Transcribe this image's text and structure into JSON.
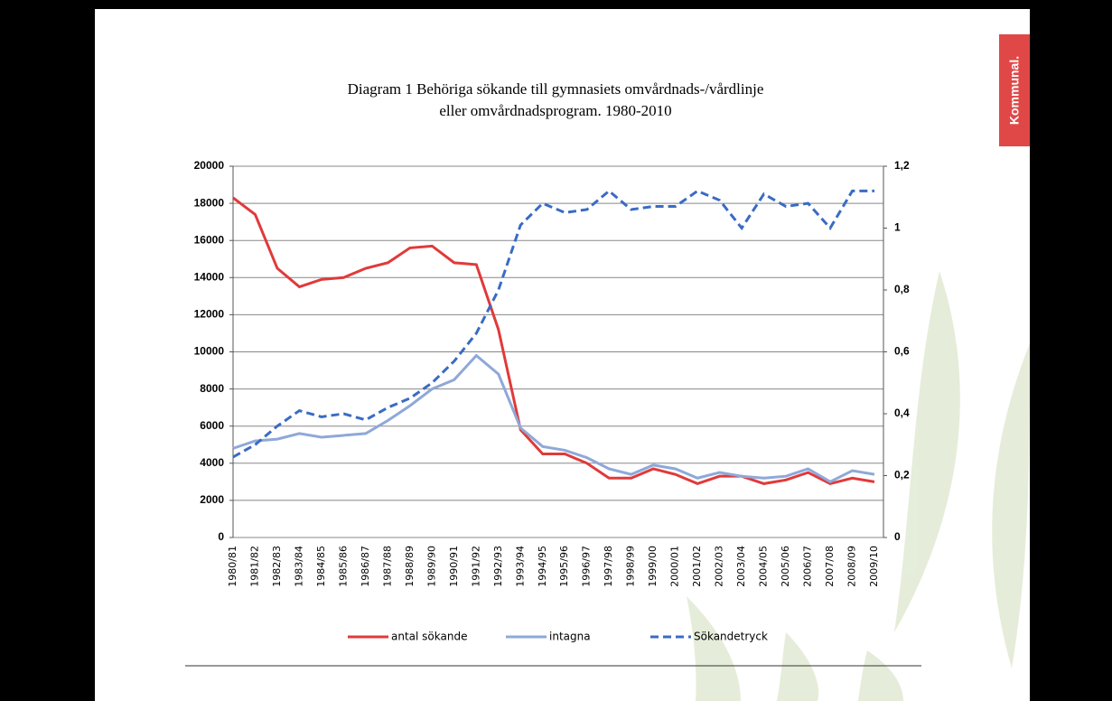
{
  "brand": "Kommunal.",
  "chart_data": {
    "type": "line",
    "title": [
      "Diagram 1 Behöriga sökande till gymnasiets omvårdnads-/vårdlinje",
      "eller omvårdnadsprogram. 1980-2010"
    ],
    "categories": [
      "1980/81",
      "1981/82",
      "1982/83",
      "1983/84",
      "1984/85",
      "1985/86",
      "1986/87",
      "1987/88",
      "1988/89",
      "1989/90",
      "1990/91",
      "1991/92",
      "1992/93",
      "1993/94",
      "1994/95",
      "1995/96",
      "1996/97",
      "1997/98",
      "1998/99",
      "1999/00",
      "2000/01",
      "2001/02",
      "2002/03",
      "2003/04",
      "2004/05",
      "2005/06",
      "2006/07",
      "2007/08",
      "2008/09",
      "2009/10"
    ],
    "series": [
      {
        "name": "antal sökande",
        "color": "#e03a3a",
        "dash": false,
        "values": [
          18300,
          17400,
          14500,
          13500,
          13900,
          14000,
          14500,
          14800,
          15600,
          15700,
          14800,
          14700,
          11200,
          5800,
          4500,
          4500,
          4000,
          3200,
          3200,
          3700,
          3400,
          2900,
          3300,
          3300,
          2900,
          3100,
          3500,
          2900,
          3200,
          3000
        ]
      },
      {
        "name": "intagna",
        "color": "#8fa8d8",
        "dash": false,
        "values": [
          4800,
          5200,
          5300,
          5600,
          5400,
          5500,
          5600,
          6300,
          7100,
          8000,
          8500,
          9800,
          8800,
          5900,
          4900,
          4700,
          4300,
          3700,
          3400,
          3900,
          3700,
          3200,
          3500,
          3300,
          3200,
          3300,
          3700,
          3000,
          3600,
          3400
        ]
      },
      {
        "name": "Sökandetryck",
        "color": "#3a6bc4",
        "dash": true,
        "axis": "y2",
        "values": [
          0.26,
          0.3,
          0.36,
          0.41,
          0.39,
          0.4,
          0.38,
          0.42,
          0.45,
          0.5,
          0.57,
          0.66,
          0.8,
          1.01,
          1.08,
          1.05,
          1.06,
          1.12,
          1.06,
          1.07,
          1.07,
          1.12,
          1.09,
          1.0,
          1.11,
          1.07,
          1.08,
          1.0,
          1.12,
          1.12
        ]
      }
    ],
    "ylim": [
      0,
      20000
    ],
    "yticks": [
      0,
      2000,
      4000,
      6000,
      8000,
      10000,
      12000,
      14000,
      16000,
      18000,
      20000
    ],
    "y2lim": [
      0,
      1.2
    ],
    "y2ticks": [
      0,
      {
        "value": 0.2,
        "label": "0,2"
      },
      {
        "value": 0.4,
        "label": "0,4"
      },
      {
        "value": 0.6,
        "label": "0,6"
      },
      {
        "value": 0.8,
        "label": "0,8"
      },
      1,
      {
        "value": 1.2,
        "label": "1,2"
      }
    ],
    "grid": true
  }
}
